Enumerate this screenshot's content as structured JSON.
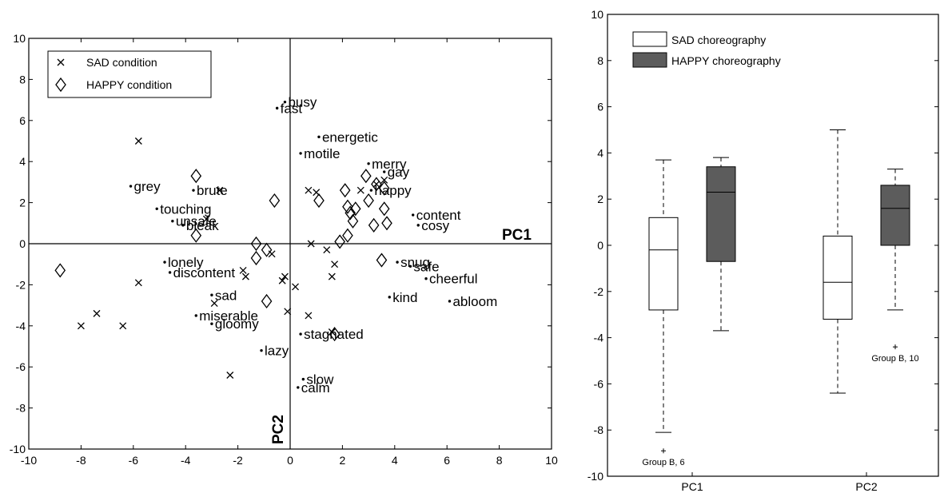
{
  "chart_data": [
    {
      "type": "scatter",
      "title": "",
      "xlim": [
        -10,
        10
      ],
      "ylim": [
        -10,
        10
      ],
      "x_ticks": [
        -10,
        -8,
        -6,
        -4,
        -2,
        0,
        2,
        4,
        6,
        8,
        10
      ],
      "y_ticks": [
        -10,
        -8,
        -6,
        -4,
        -2,
        0,
        2,
        4,
        6,
        8,
        10
      ],
      "grid": false,
      "legend": "top-left",
      "axis_labels": {
        "pc1": "PC1",
        "pc2": "PC2"
      },
      "series": [
        {
          "name": "SAD condition",
          "marker": "x",
          "points": [
            [
              -5.8,
              5.0
            ],
            [
              -2.7,
              2.6
            ],
            [
              -3.2,
              1.2
            ],
            [
              -5.8,
              -1.9
            ],
            [
              -7.4,
              -3.4
            ],
            [
              -8.0,
              -4.0
            ],
            [
              -6.4,
              -4.0
            ],
            [
              -2.9,
              -2.9
            ],
            [
              -1.7,
              -1.6
            ],
            [
              -1.8,
              -1.3
            ],
            [
              -2.3,
              -6.4
            ],
            [
              -0.3,
              -1.8
            ],
            [
              -0.2,
              -1.6
            ],
            [
              -0.7,
              -0.5
            ],
            [
              0.2,
              -2.1
            ],
            [
              -0.1,
              -3.3
            ],
            [
              0.7,
              2.6
            ],
            [
              1.0,
              2.5
            ],
            [
              0.8,
              0.0
            ],
            [
              1.4,
              -0.3
            ],
            [
              1.7,
              -1.0
            ],
            [
              1.6,
              -1.6
            ],
            [
              0.7,
              -3.5
            ],
            [
              1.6,
              -4.3
            ],
            [
              2.7,
              2.6
            ],
            [
              3.3,
              2.9
            ],
            [
              3.6,
              3.1
            ]
          ]
        },
        {
          "name": "HAPPY condition",
          "marker": "diamond",
          "points": [
            [
              -8.8,
              -1.3
            ],
            [
              -3.6,
              3.3
            ],
            [
              -3.6,
              0.4
            ],
            [
              -0.6,
              2.1
            ],
            [
              -1.3,
              0.0
            ],
            [
              -1.3,
              -0.7
            ],
            [
              -0.9,
              -0.3
            ],
            [
              -0.9,
              -2.8
            ],
            [
              1.1,
              2.1
            ],
            [
              2.1,
              2.6
            ],
            [
              2.2,
              1.8
            ],
            [
              2.3,
              1.5
            ],
            [
              2.4,
              1.1
            ],
            [
              2.2,
              0.4
            ],
            [
              1.9,
              0.1
            ],
            [
              2.5,
              1.7
            ],
            [
              2.9,
              3.3
            ],
            [
              3.0,
              2.1
            ],
            [
              3.3,
              2.9
            ],
            [
              3.6,
              2.7
            ],
            [
              3.6,
              1.7
            ],
            [
              3.7,
              1.0
            ],
            [
              3.2,
              0.9
            ],
            [
              3.5,
              -0.8
            ],
            [
              1.7,
              -4.4
            ]
          ]
        }
      ],
      "words": [
        {
          "label": "busy",
          "x": -0.2,
          "y": 6.9
        },
        {
          "label": "fast",
          "x": -0.5,
          "y": 6.6
        },
        {
          "label": "energetic",
          "x": 1.1,
          "y": 5.2
        },
        {
          "label": "motile",
          "x": 0.4,
          "y": 4.4
        },
        {
          "label": "merry",
          "x": 3.0,
          "y": 3.9
        },
        {
          "label": "gay",
          "x": 3.6,
          "y": 3.5
        },
        {
          "label": "happy",
          "x": 3.1,
          "y": 2.6
        },
        {
          "label": "content",
          "x": 4.7,
          "y": 1.4
        },
        {
          "label": "cosy",
          "x": 4.9,
          "y": 0.9
        },
        {
          "label": "snug",
          "x": 4.1,
          "y": -0.9
        },
        {
          "label": "safe",
          "x": 4.6,
          "y": -1.1
        },
        {
          "label": "cheerful",
          "x": 5.2,
          "y": -1.7
        },
        {
          "label": "kind",
          "x": 3.8,
          "y": -2.6
        },
        {
          "label": "abloom",
          "x": 6.1,
          "y": -2.8
        },
        {
          "label": "stagnated",
          "x": 0.4,
          "y": -4.4
        },
        {
          "label": "lazy",
          "x": -1.1,
          "y": -5.2
        },
        {
          "label": "slow",
          "x": 0.5,
          "y": -6.6
        },
        {
          "label": "calm",
          "x": 0.3,
          "y": -7.0
        },
        {
          "label": "grey",
          "x": -6.1,
          "y": 2.8
        },
        {
          "label": "brute",
          "x": -3.7,
          "y": 2.6
        },
        {
          "label": "touching",
          "x": -5.1,
          "y": 1.7
        },
        {
          "label": "unsafe",
          "x": -4.5,
          "y": 1.1
        },
        {
          "label": "bleak",
          "x": -4.1,
          "y": 0.9
        },
        {
          "label": "lonely",
          "x": -4.8,
          "y": -0.9
        },
        {
          "label": "discontent",
          "x": -4.6,
          "y": -1.4
        },
        {
          "label": "sad",
          "x": -3.0,
          "y": -2.5
        },
        {
          "label": "miserable",
          "x": -3.6,
          "y": -3.5
        },
        {
          "label": "gloomy",
          "x": -3.0,
          "y": -3.9
        }
      ]
    },
    {
      "type": "box",
      "title": "",
      "ylim": [
        -10,
        10
      ],
      "y_ticks": [
        -10,
        -8,
        -6,
        -4,
        -2,
        0,
        2,
        4,
        6,
        8,
        10
      ],
      "categories": [
        "PC1",
        "PC2"
      ],
      "grid": false,
      "legend": "top-left",
      "series": [
        {
          "name": "SAD choreography",
          "color": "#ffffff",
          "boxes": [
            {
              "whisker_low": -8.1,
              "q1": -2.8,
              "median": -0.2,
              "q3": 1.2,
              "whisker_high": 3.7
            },
            {
              "whisker_low": -6.4,
              "q1": -3.2,
              "median": -1.6,
              "q3": 0.4,
              "whisker_high": 5.0
            }
          ]
        },
        {
          "name": "HAPPY choreography",
          "color": "#5c5c5c",
          "boxes": [
            {
              "whisker_low": -3.7,
              "q1": -0.7,
              "median": 2.3,
              "q3": 3.4,
              "whisker_high": 3.8
            },
            {
              "whisker_low": -2.8,
              "q1": 0.0,
              "median": 1.6,
              "q3": 2.6,
              "whisker_high": 3.3
            }
          ]
        }
      ],
      "outliers": [
        {
          "category": "PC1",
          "series": "SAD choreography",
          "value": -8.9,
          "label": "Group B, 6"
        },
        {
          "category": "PC2",
          "series": "HAPPY choreography",
          "value": -4.4,
          "label": "Group B, 10"
        }
      ]
    }
  ]
}
